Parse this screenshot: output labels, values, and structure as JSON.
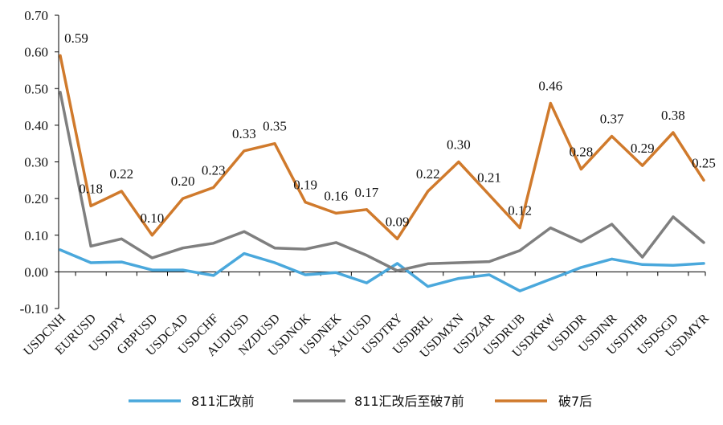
{
  "chart_data": {
    "type": "line",
    "title": "",
    "xlabel": "",
    "ylabel": "",
    "ylim": [
      -0.1,
      0.7
    ],
    "yticks": [
      -0.1,
      0.0,
      0.1,
      0.2,
      0.3,
      0.4,
      0.5,
      0.6,
      0.7
    ],
    "ytick_labels": [
      "-0.10",
      "0.00",
      "0.10",
      "0.20",
      "0.30",
      "0.40",
      "0.50",
      "0.60",
      "0.70"
    ],
    "categories": [
      "USDCNH",
      "EURUSD",
      "USDJPY",
      "GBPUSD",
      "USDCAD",
      "USDCHF",
      "AUDUSD",
      "NZDUSD",
      "USDNOK",
      "USDNEK",
      "XAUUSD",
      "USDTRY",
      "USDBRL",
      "USDMXN",
      "USDZAR",
      "USDRUB",
      "USDKRW",
      "USDIDR",
      "USDINR",
      "USDTHB",
      "USDSGD",
      "USDMYR"
    ],
    "grid": false,
    "legend_position": "bottom",
    "series": [
      {
        "name": "811汇改前",
        "color": "#4aa8dc",
        "values": [
          0.06,
          0.025,
          0.027,
          0.005,
          0.005,
          -0.01,
          0.05,
          0.025,
          -0.008,
          -0.002,
          -0.03,
          0.023,
          -0.04,
          -0.018,
          -0.008,
          -0.052,
          -0.02,
          0.012,
          0.035,
          0.02,
          0.018,
          0.023
        ]
      },
      {
        "name": "811汇改后至破7前",
        "color": "#7f7f7f",
        "values": [
          0.49,
          0.07,
          0.09,
          0.038,
          0.065,
          0.078,
          0.11,
          0.065,
          0.062,
          0.08,
          0.045,
          0.003,
          0.022,
          0.025,
          0.028,
          0.058,
          0.12,
          0.082,
          0.13,
          0.04,
          0.15,
          0.08
        ]
      },
      {
        "name": "破7后",
        "color": "#d07a2c",
        "values": [
          0.59,
          0.18,
          0.22,
          0.1,
          0.2,
          0.23,
          0.33,
          0.35,
          0.19,
          0.16,
          0.17,
          0.09,
          0.22,
          0.3,
          0.21,
          0.12,
          0.46,
          0.28,
          0.37,
          0.29,
          0.38,
          0.25
        ],
        "data_labels": [
          "0.59",
          "0.18",
          "0.22",
          "0.10",
          "0.20",
          "0.23",
          "0.33",
          "0.35",
          "0.19",
          "0.16",
          "0.17",
          "0.09",
          "0.22",
          "0.30",
          "0.21",
          "0.12",
          "0.46",
          "0.28",
          "0.37",
          "0.29",
          "0.38",
          "0.25"
        ]
      }
    ]
  }
}
